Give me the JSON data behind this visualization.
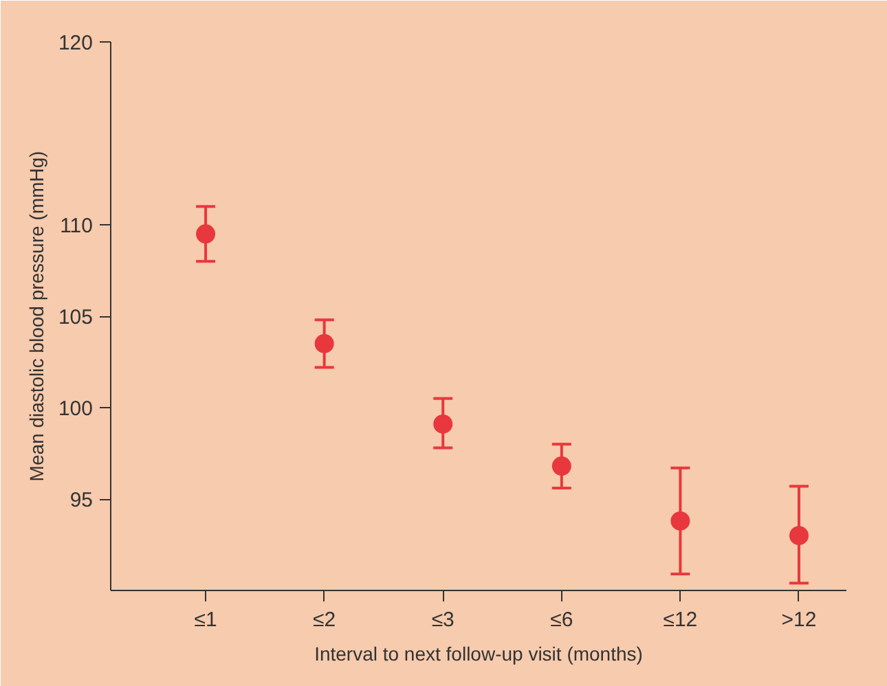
{
  "chart_data": {
    "type": "scatter",
    "xlabel": "Interval to next follow-up visit (months)",
    "ylabel": "Mean diastolic blood pressure (mmHg)",
    "categories": [
      "≤1",
      "≤2",
      "≤3",
      "≤6",
      "≤12",
      ">12"
    ],
    "series": [
      {
        "color": "#e8383d",
        "values": [
          109.5,
          103.5,
          99.1,
          96.8,
          93.8,
          93.0
        ],
        "errors": [
          [
            108.0,
            111.0
          ],
          [
            102.2,
            104.8
          ],
          [
            97.8,
            100.5
          ],
          [
            95.6,
            98.0
          ],
          [
            90.9,
            96.7
          ],
          [
            90.4,
            95.7
          ]
        ]
      }
    ],
    "ylim": [
      90,
      120
    ],
    "yticks": [
      95,
      100,
      105,
      110,
      120
    ],
    "marker": "circle"
  }
}
